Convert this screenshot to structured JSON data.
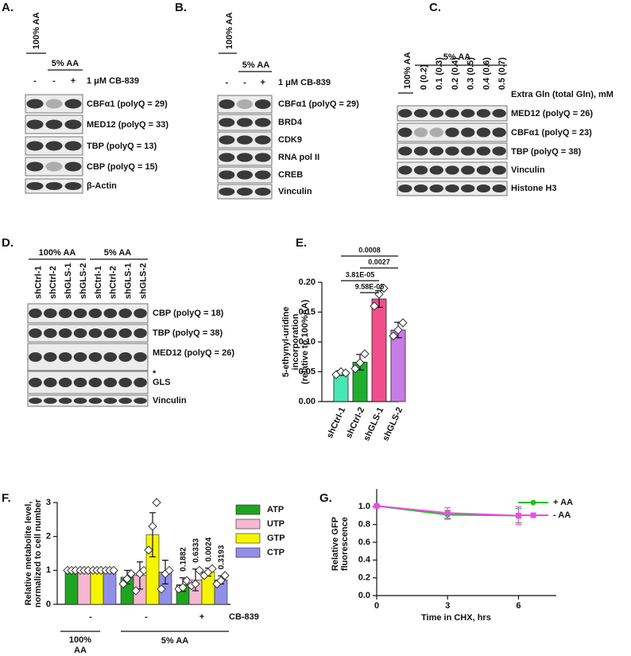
{
  "panels": {
    "A": {
      "letter": "A.",
      "group_labels": [
        "100% AA",
        "5% AA"
      ],
      "lane_marks": [
        "-",
        "-",
        "+"
      ],
      "treatment": "1 μM CB-839",
      "bands": [
        "CBFα1 (polyQ = 29)",
        "MED12 (polyQ = 33)",
        "TBP (polyQ = 13)",
        "CBP (polyQ = 15)",
        "β-Actin"
      ]
    },
    "B": {
      "letter": "B.",
      "group_labels": [
        "100% AA",
        "5% AA"
      ],
      "lane_marks": [
        "-",
        "-",
        "+"
      ],
      "treatment": "1 μM CB-839",
      "bands": [
        "CBFα1 (polyQ = 29)",
        "BRD4",
        "CDK9",
        "RNA pol II",
        "CREB",
        "Vinculin"
      ]
    },
    "C": {
      "letter": "C.",
      "group_labels": [
        "100% AA",
        "5% AA"
      ],
      "lanes": [
        "0 (0.2)",
        "0.1 (0.3)",
        "0.2 (0.4)",
        "0.3 (0.5)",
        "0.4 (0.6)",
        "0.5 (0.7)"
      ],
      "treatment": "Extra Gln (total Gln), mM",
      "bands": [
        "MED12 (polyQ = 26)",
        "CBFα1 (polyQ = 23)",
        "TBP (polyQ = 38)",
        "Vinculin",
        "Histone H3"
      ]
    },
    "D": {
      "letter": "D.",
      "group_labels": [
        "100% AA",
        "5% AA"
      ],
      "lanes": [
        "shCtrl-1",
        "shCtrl-2",
        "shGLS-1",
        "shGLS-2",
        "shCtrl-1",
        "shCtrl-2",
        "shGLS-1",
        "shGLS-2"
      ],
      "bands": [
        "CBP (polyQ = 18)",
        "TBP (polyQ = 38)",
        "MED12 (polyQ = 26)",
        "GLS",
        "Vinculin"
      ],
      "marker": "*"
    }
  },
  "chart_data": [
    {
      "type": "bar",
      "panel_label": "E.",
      "ylabel": [
        "5-ethynyl-uridine",
        "incorporation",
        "(relative to 100%AA)"
      ],
      "categories": [
        "shCtrl-1",
        "shCtrl-2",
        "shGLS-1",
        "shGLS-2"
      ],
      "values": [
        0.048,
        0.066,
        0.172,
        0.12
      ],
      "errors": [
        0.004,
        0.013,
        0.014,
        0.013
      ],
      "points": [
        [
          0.045,
          0.05,
          0.048
        ],
        [
          0.055,
          0.065,
          0.08
        ],
        [
          0.16,
          0.18,
          0.19
        ],
        [
          0.11,
          0.12,
          0.132
        ]
      ],
      "colors": [
        "#48e8b4",
        "#1fae2e",
        "#f04f8c",
        "#c77ce6"
      ],
      "comparisons": [
        "0.0008",
        "0.0027",
        "3.81E-05",
        "9.58E-05"
      ],
      "ylim": [
        0,
        0.2
      ],
      "yticks": [
        {
          "value": 0,
          "label": "0.00"
        },
        {
          "value": 0.05,
          "label": "0.05"
        },
        {
          "value": 0.1,
          "label": "0.10"
        },
        {
          "value": 0.15,
          "label": "0.15"
        },
        {
          "value": 0.2,
          "label": "0.20"
        }
      ]
    },
    {
      "type": "grouped-bar",
      "panel_label": "F.",
      "ylabel": [
        "Relative metabolite level,",
        "normalized to cell number"
      ],
      "categories": [
        "-",
        "-",
        "+"
      ],
      "treatment": "CB-839",
      "group_labels": [
        [
          "100%",
          "AA"
        ],
        "5% AA"
      ],
      "series": [
        {
          "name": "ATP",
          "color": "#1fa51f",
          "values": [
            1,
            0.8,
            0.58
          ],
          "errors": [
            0,
            0.2,
            0.2
          ],
          "points": [
            [
              1,
              1,
              1
            ],
            [
              0.6,
              0.75,
              0.9
            ],
            [
              0.45,
              0.5,
              0.7
            ]
          ],
          "value_label": "0.1882"
        },
        {
          "name": "UTP",
          "color": "#f5b8d0",
          "values": [
            1,
            0.85,
            0.72
          ],
          "errors": [
            0,
            0.4,
            0.32
          ],
          "points": [
            [
              1,
              1,
              1
            ],
            [
              0.4,
              0.9,
              1.0
            ],
            [
              0.55,
              0.6,
              1.0
            ]
          ],
          "value_label": "0.6333"
        },
        {
          "name": "GTP",
          "color": "#f5f500",
          "values": [
            1,
            2.05,
            0.95
          ],
          "errors": [
            0,
            0.65,
            0.12
          ],
          "points": [
            [
              1,
              1,
              1
            ],
            [
              1.6,
              2.3,
              3.0
            ],
            [
              0.85,
              0.95,
              1.05
            ]
          ],
          "value_label": "0.0024"
        },
        {
          "name": "CTP",
          "color": "#9090e8",
          "values": [
            1,
            0.95,
            0.72
          ],
          "errors": [
            0,
            0.35,
            0.12
          ],
          "points": [
            [
              1,
              1,
              1
            ],
            [
              0.45,
              0.9,
              1.0
            ],
            [
              0.6,
              0.7,
              0.85
            ]
          ],
          "value_label": "0.3193"
        }
      ],
      "ylim": [
        0,
        3
      ],
      "yticks": [
        0,
        1,
        2,
        3
      ]
    },
    {
      "type": "line",
      "panel_label": "G.",
      "xlabel": "Time in CHX, hrs",
      "ylabel": [
        "Relative GFP",
        "fluorescence"
      ],
      "x": [
        0,
        3,
        6
      ],
      "series": [
        {
          "name": "+ AA",
          "color": "#22c022",
          "marker": "circle",
          "values": [
            1.01,
            0.91,
            0.9
          ],
          "errors": [
            0.01,
            0.05,
            0.08
          ]
        },
        {
          "name": "- AA",
          "color": "#e650e6",
          "marker": "square",
          "values": [
            1.01,
            0.93,
            0.9
          ],
          "errors": [
            0.01,
            0.06,
            0.1
          ]
        }
      ],
      "xlim": [
        0,
        7.6
      ],
      "xticks": [
        0,
        3,
        6
      ],
      "ylim": [
        0,
        1.2
      ],
      "yticks": [
        {
          "value": 0,
          "label": "0.0"
        },
        0.2,
        0.4,
        0.6,
        0.8,
        {
          "value": 1,
          "label": "1.0"
        }
      ]
    }
  ]
}
